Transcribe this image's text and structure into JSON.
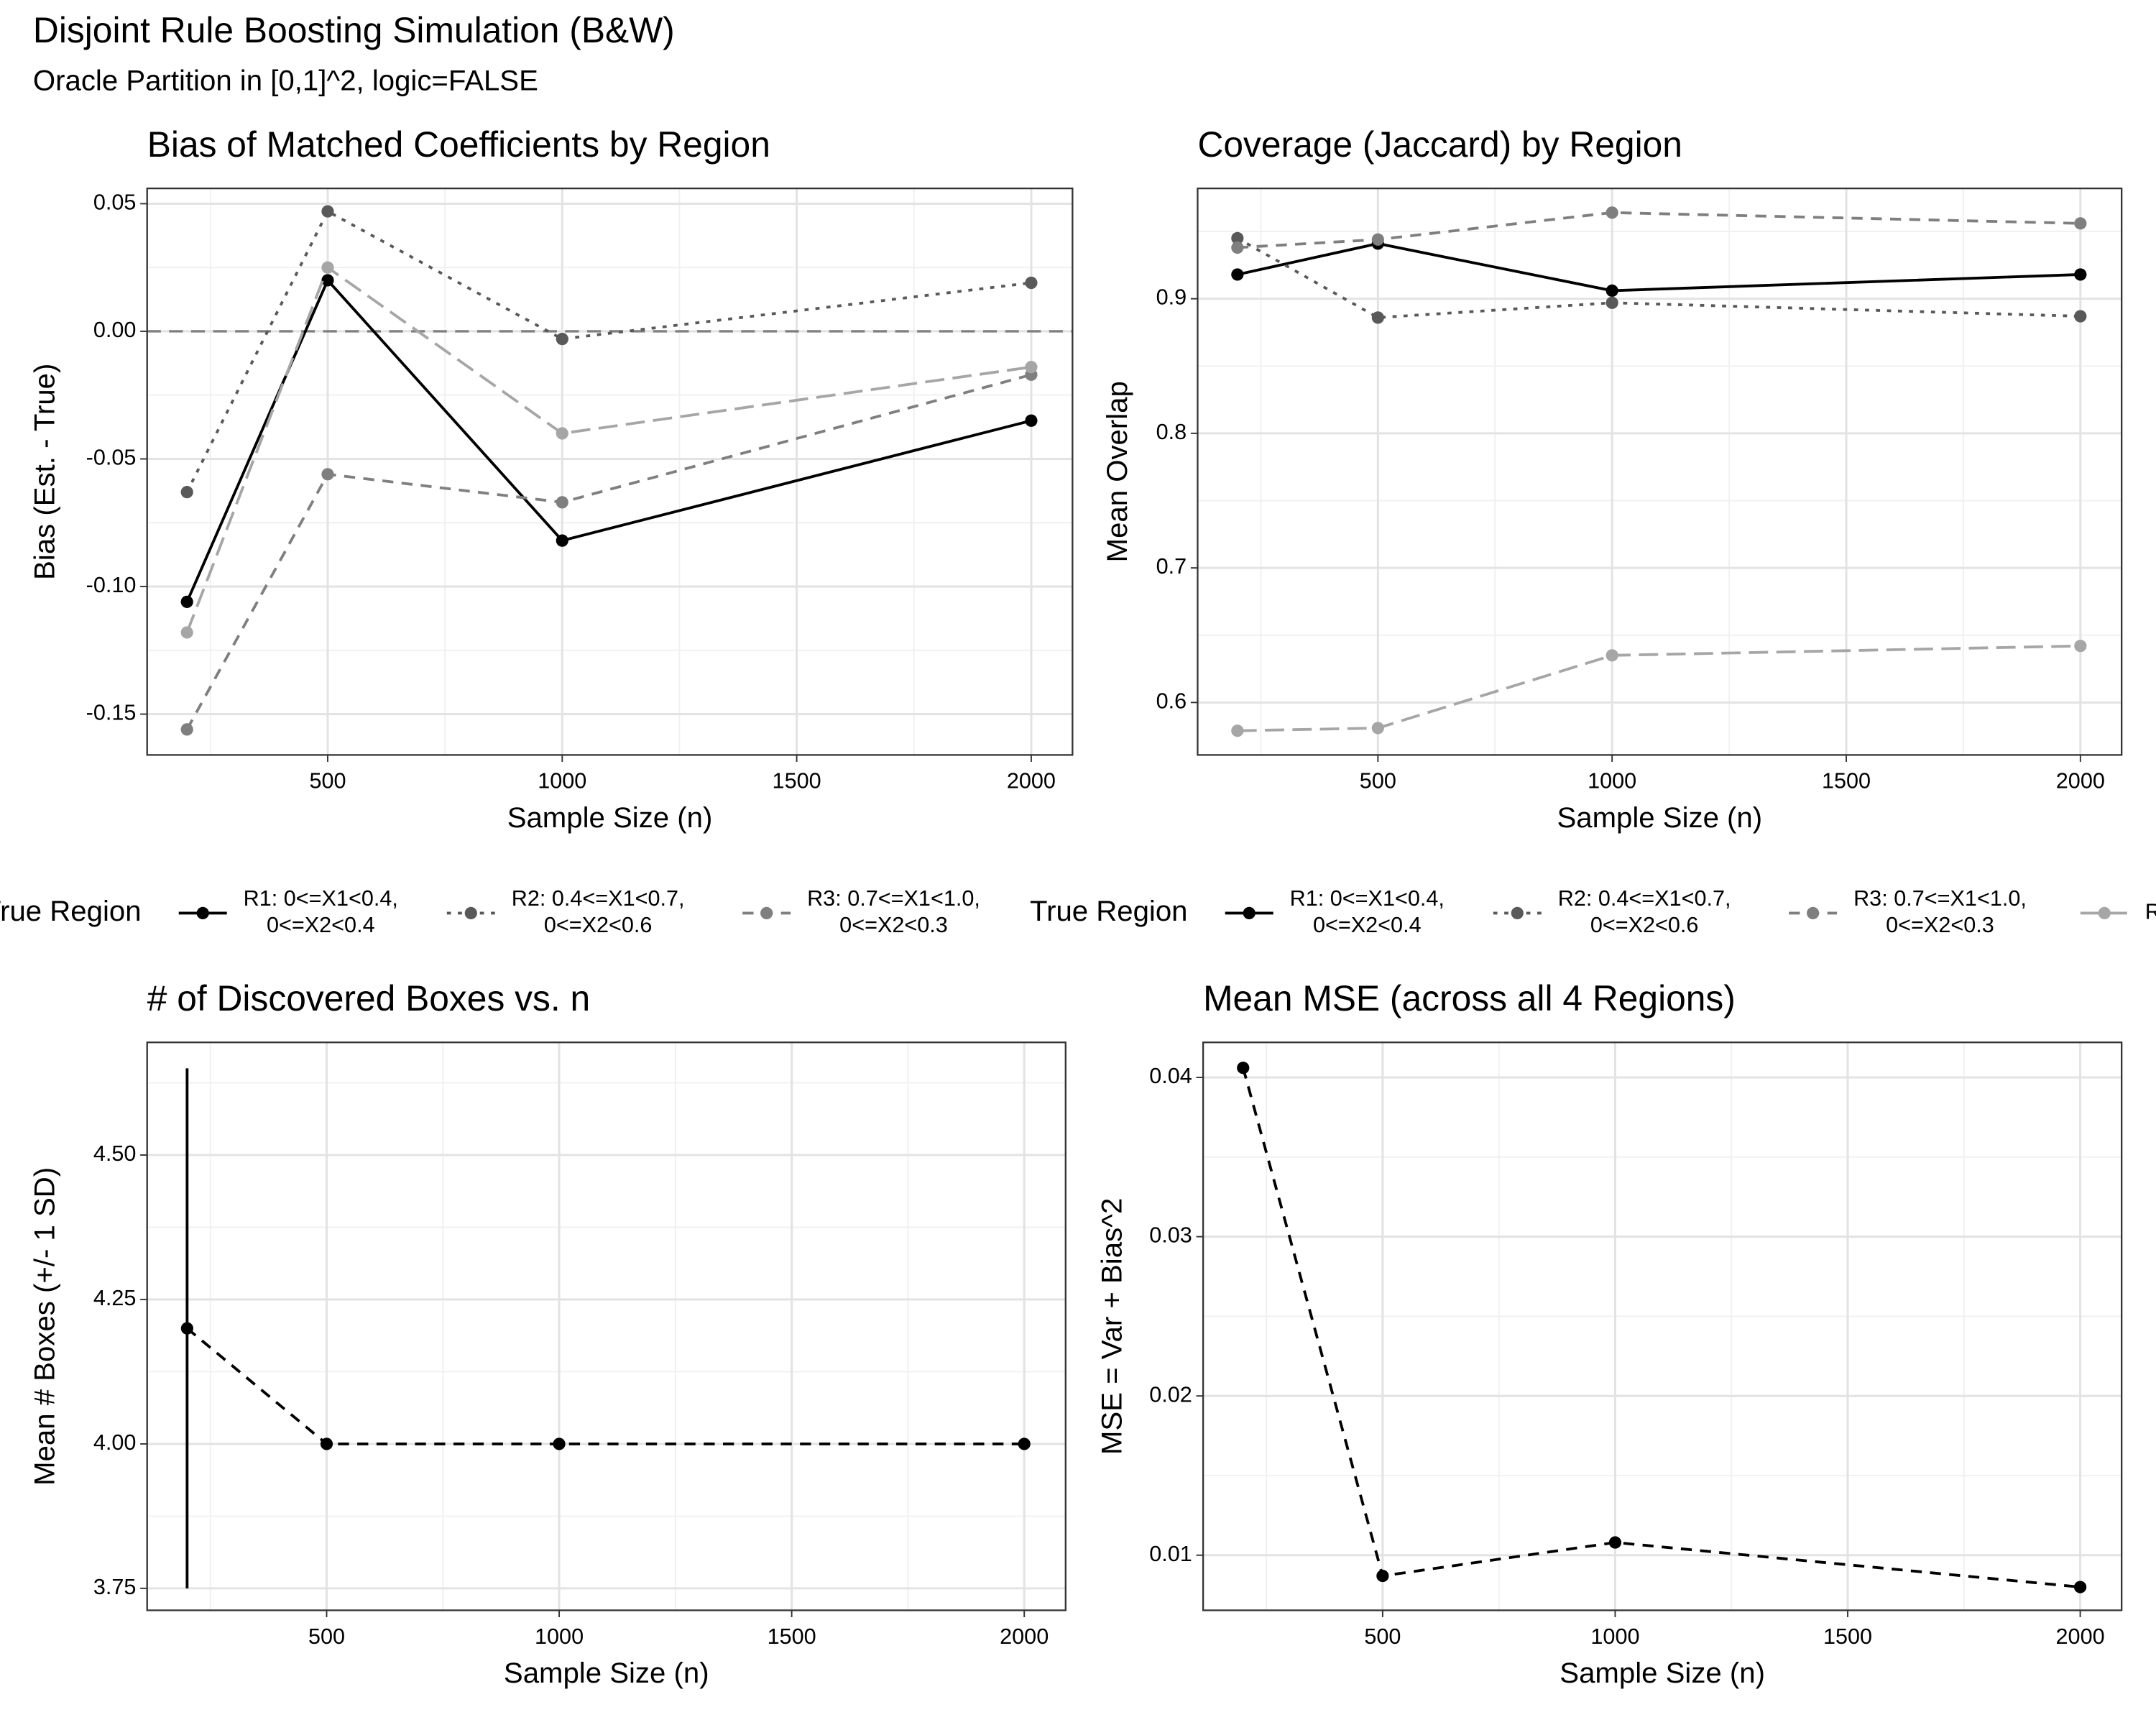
{
  "title": "Disjoint Rule Boosting Simulation (B&W)",
  "subtitle": "Oracle Partition in [0,1]^2, logic=FALSE",
  "chart_data": [
    {
      "type": "line",
      "title": "Bias of Matched Coefficients by Region",
      "x_label": "Sample Size (n)",
      "y_label": "Bias (Est. - True)",
      "x": [
        200,
        500,
        1000,
        2000
      ],
      "xlim": [
        115,
        2088
      ],
      "ylim": [
        -0.166,
        0.056
      ],
      "xticks": [
        500,
        1000,
        1500,
        2000
      ],
      "yticks": [
        0.05,
        {
          "value": 0,
          "label": "0.00"
        },
        -0.05,
        {
          "value": -0.1,
          "label": "-0.10"
        },
        -0.15
      ],
      "grid": true,
      "minor_grid": true,
      "hline": 0,
      "legend": {
        "title": "True Region",
        "position": "bottom"
      },
      "series": [
        {
          "name": "R1: 0<=X1<0.4,\n0<=X2<0.4",
          "color": "#000000",
          "linetype": "solid",
          "values": [
            -0.106,
            0.02,
            -0.082,
            -0.035
          ]
        },
        {
          "name": "R2: 0.4<=X1<0.7,\n0<=X2<0.6",
          "color": "#595959",
          "linetype": "dotted",
          "values": [
            -0.063,
            0.047,
            -0.003,
            0.019
          ]
        },
        {
          "name": "R3: 0.7<=X1<1.0,\n0<=X2<0.3",
          "color": "#7f7f7f",
          "linetype": "dashed",
          "values": [
            -0.156,
            -0.056,
            -0.067,
            -0.017
          ]
        },
        {
          "name": "R",
          "color": "#a6a6a6",
          "linetype": "longdash",
          "values": [
            -0.118,
            0.025,
            -0.04,
            -0.014
          ]
        }
      ]
    },
    {
      "type": "line",
      "title": "Coverage (Jaccard) by Region",
      "x_label": "Sample Size (n)",
      "y_label": "Mean Overlap",
      "x": [
        200,
        500,
        1000,
        2000
      ],
      "xlim": [
        115,
        2088
      ],
      "ylim": [
        0.561,
        0.982
      ],
      "xticks": [
        500,
        1000,
        1500,
        2000
      ],
      "yticks": [
        0.9,
        0.8,
        0.7,
        0.6
      ],
      "grid": true,
      "minor_grid": true,
      "legend": {
        "title": "True Region",
        "position": "bottom"
      },
      "series": [
        {
          "name": "R1: 0<=X1<0.4,\n0<=X2<0.4",
          "color": "#000000",
          "linetype": "solid",
          "values": [
            0.918,
            0.941,
            0.906,
            0.918
          ]
        },
        {
          "name": "R2: 0.4<=X1<0.7,\n0<=X2<0.6",
          "color": "#595959",
          "linetype": "dotted",
          "values": [
            0.945,
            0.886,
            0.897,
            0.887
          ]
        },
        {
          "name": "R3: 0.7<=X1<1.0,\n0<=X2<0.3",
          "color": "#7f7f7f",
          "linetype": "dashed",
          "values": [
            0.938,
            0.944,
            0.964,
            0.956
          ]
        },
        {
          "name": "R",
          "color": "#a6a6a6",
          "linetype": "longdash",
          "values": [
            0.579,
            0.581,
            0.635,
            0.642
          ]
        }
      ]
    },
    {
      "type": "line",
      "title": "# of Discovered Boxes vs. n",
      "x_label": "Sample Size (n)",
      "y_label": "Mean # Boxes (+/- 1 SD)",
      "x": [
        200,
        500,
        1000,
        2000
      ],
      "xlim": [
        114,
        2089
      ],
      "ylim": [
        3.712,
        4.695
      ],
      "xticks": [
        500,
        1000,
        1500,
        2000
      ],
      "yticks": [
        {
          "value": 4.5,
          "label": "4.50"
        },
        4.25,
        {
          "value": 4,
          "label": "4.00"
        },
        3.75
      ],
      "grid": true,
      "minor_grid": true,
      "series": [
        {
          "color": "#000000",
          "linetype": "dashed",
          "values": [
            4.2,
            4.0,
            4.0,
            4.0
          ],
          "errors": [
            0.45,
            0,
            0,
            0
          ]
        }
      ]
    },
    {
      "type": "line",
      "title": "Mean MSE (across all 4 Regions)",
      "x_label": "Sample Size (n)",
      "y_label": "MSE = Var + Bias^2",
      "x": [
        200,
        500,
        1000,
        2000
      ],
      "xlim": [
        114,
        2089
      ],
      "ylim": [
        0.00654,
        0.0422
      ],
      "xticks": [
        500,
        1000,
        1500,
        2000
      ],
      "yticks": [
        0.04,
        0.03,
        0.02,
        0.01
      ],
      "grid": true,
      "minor_grid": true,
      "series": [
        {
          "color": "#000000",
          "linetype": "dashed",
          "values": [
            0.0406,
            0.0087,
            0.0108,
            0.008
          ]
        }
      ]
    }
  ]
}
